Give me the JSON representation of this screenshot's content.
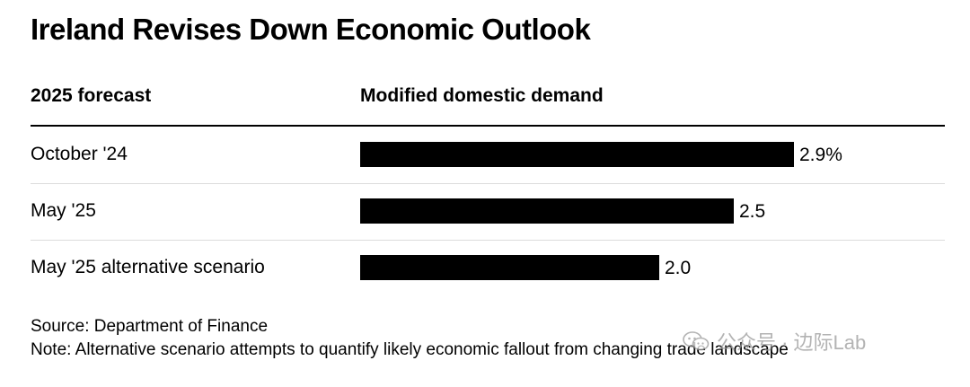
{
  "title": "Ireland Revises Down Economic Outlook",
  "headers": {
    "left": "2025 forecast",
    "right": "Modified domestic demand"
  },
  "chart_data": {
    "type": "bar",
    "orientation": "horizontal",
    "categories": [
      "October '24",
      "May '25",
      "May '25 alternative scenario"
    ],
    "values": [
      2.9,
      2.5,
      2.0
    ],
    "value_labels": [
      "2.9%",
      "2.5",
      "2.0"
    ],
    "unit": "%",
    "title": "Ireland Revises Down Economic Outlook",
    "xlabel": "Modified domestic demand",
    "ylabel": "2025 forecast",
    "grid": false,
    "bar_color": "#000000"
  },
  "footer": {
    "source": "Source: Department of Finance",
    "note": "Note: Alternative scenario attempts to quantify likely economic fallout from changing trade landscape"
  },
  "watermark": {
    "text": "公众号 · 边际Lab",
    "icon": "wechat-icon"
  }
}
